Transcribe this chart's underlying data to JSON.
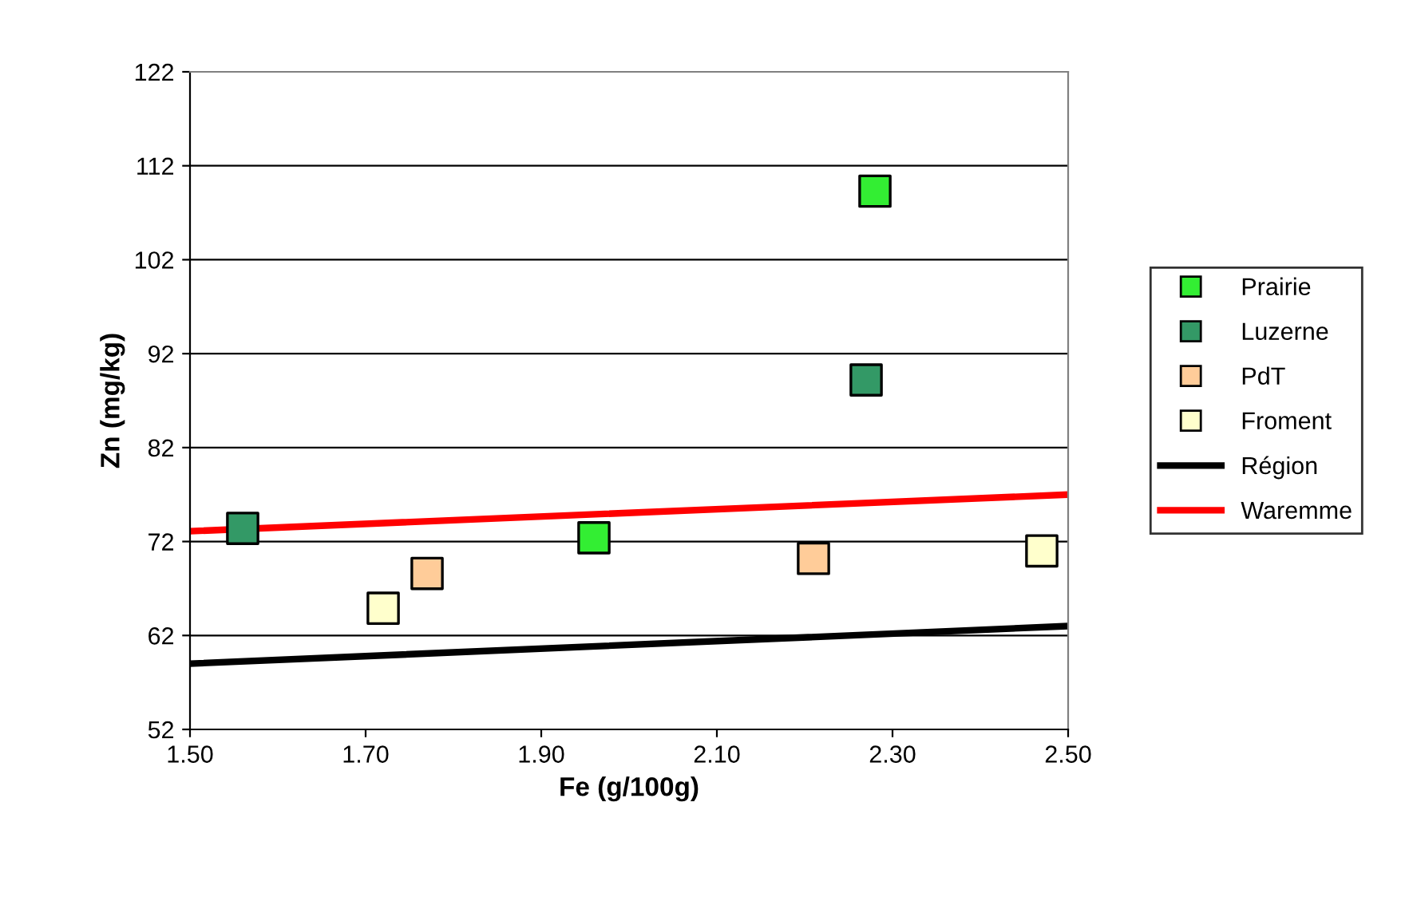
{
  "chart_data": {
    "type": "scatter",
    "xlabel": "Fe (g/100g)",
    "ylabel": "Zn (mg/kg)",
    "xlim": [
      1.5,
      2.5
    ],
    "xticks": [
      {
        "value": 1.5,
        "label": "1.50"
      },
      {
        "value": 1.7,
        "label": "1.70"
      },
      {
        "value": 1.9,
        "label": "1.90"
      },
      {
        "value": 2.1,
        "label": "2.10"
      },
      {
        "value": 2.3,
        "label": "2.30"
      },
      {
        "value": 2.5,
        "label": "2.50"
      }
    ],
    "ylim": [
      52,
      122
    ],
    "yticks": [
      52,
      62,
      72,
      82,
      92,
      102,
      112,
      122
    ],
    "grid": "y",
    "legend": "right",
    "marker": "square",
    "series": [
      {
        "name": "Prairie",
        "color": "#33ee33",
        "x": [
          2.28,
          1.96
        ],
        "values": [
          109.3,
          72.4
        ]
      },
      {
        "name": "Luzerne",
        "color": "#339966",
        "x": [
          1.56,
          2.27
        ],
        "values": [
          73.4,
          89.2
        ]
      },
      {
        "name": "PdT",
        "color": "#ffcc99",
        "x": [
          1.77,
          2.21
        ],
        "values": [
          68.6,
          70.2
        ]
      },
      {
        "name": "Froment",
        "color": "#ffffcc",
        "x": [
          1.72,
          2.47
        ],
        "values": [
          64.9,
          71.0
        ]
      },
      {
        "name": "Région",
        "type": "line",
        "color": "#000000",
        "marker": "none",
        "x": [
          1.5,
          2.5
        ],
        "values": [
          59.0,
          63.0
        ]
      },
      {
        "name": "Waremme",
        "type": "line",
        "color": "#ff0000",
        "marker": "none",
        "x": [
          1.5,
          2.5
        ],
        "values": [
          73.1,
          77.0
        ]
      }
    ]
  }
}
